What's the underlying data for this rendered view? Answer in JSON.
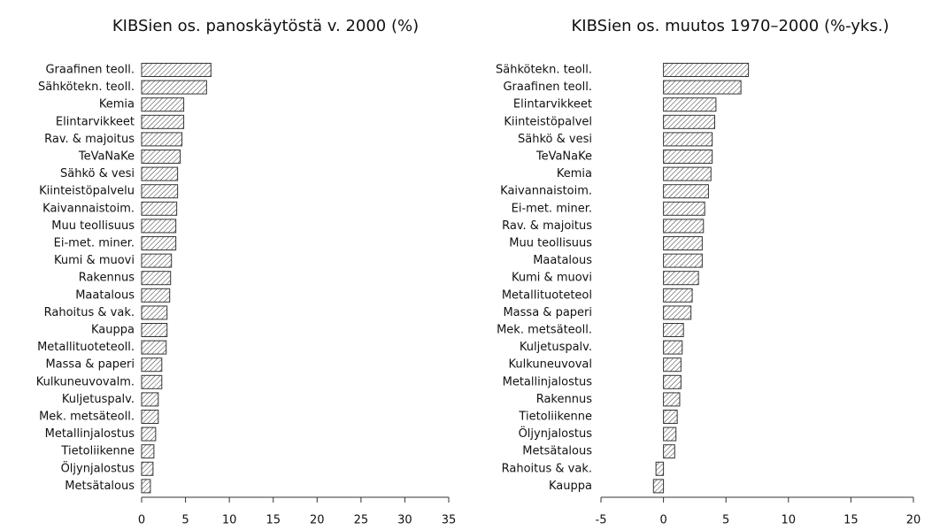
{
  "chart_data": [
    {
      "type": "bar",
      "orientation": "horizontal",
      "title": "KIBSien os. panoskäytöstä v. 2000 (%)",
      "color": "#333333",
      "categories": [
        "Graafinen teoll.",
        "Sähkötekn. teoll.",
        "Kemia",
        "Elintarvikkeet",
        "Rav. & majoitus",
        "TeVaNaKe",
        "Sähkö & vesi",
        "Kiinteistöpalvelu",
        "Kaivannaistoim.",
        "Muu teollisuus",
        "Ei-met. miner.",
        "Kumi & muovi",
        "Rakennus",
        "Maatalous",
        "Rahoitus & vak.",
        "Kauppa",
        "Metallituoteteoll.",
        "Massa & paperi",
        "Kulkuneuvovalm.",
        "Kuljetuspalv.",
        "Mek. metsäteoll.",
        "Metallinjalostus",
        "Tietoliikenne",
        "Öljynjalostus",
        "Metsätalous"
      ],
      "values": [
        7.9,
        7.4,
        4.8,
        4.8,
        4.6,
        4.4,
        4.1,
        4.1,
        4.0,
        3.9,
        3.9,
        3.4,
        3.3,
        3.2,
        2.9,
        2.9,
        2.8,
        2.3,
        2.3,
        1.9,
        1.9,
        1.6,
        1.4,
        1.3,
        1.0
      ],
      "xlim": [
        0,
        35
      ],
      "xticks": [
        0,
        5,
        10,
        15,
        20,
        25,
        30,
        35
      ]
    },
    {
      "type": "bar",
      "orientation": "horizontal",
      "title": "KIBSien os. muutos 1970–2000 (%-yks.)",
      "color": "#333333",
      "categories": [
        "Sähkötekn. teoll.",
        "Graafinen teoll.",
        "Elintarvikkeet",
        "Kiinteistöpalvel",
        "Sähkö & vesi",
        "TeVaNaKe",
        "Kemia",
        "Kaivannaistoim.",
        "Ei-met. miner.",
        "Rav. & majoitus",
        "Muu teollisuus",
        "Maatalous",
        "Kumi & muovi",
        "Metallituoteteol",
        "Massa & paperi",
        "Mek. metsäteoll.",
        "Kuljetuspalv.",
        "Kulkuneuvoval",
        "Metallinjalostus",
        "Rakennus",
        "Tietoliikenne",
        "Öljynjalostus",
        "Metsätalous",
        "Rahoitus & vak.",
        "Kauppa"
      ],
      "values": [
        6.8,
        6.2,
        4.2,
        4.1,
        3.9,
        3.9,
        3.8,
        3.6,
        3.3,
        3.2,
        3.1,
        3.1,
        2.8,
        2.3,
        2.2,
        1.6,
        1.5,
        1.4,
        1.4,
        1.3,
        1.1,
        1.0,
        0.9,
        -0.6,
        -0.8
      ],
      "xlim": [
        -5,
        20
      ],
      "xticks": [
        -5,
        0,
        5,
        10,
        15,
        20
      ]
    }
  ]
}
